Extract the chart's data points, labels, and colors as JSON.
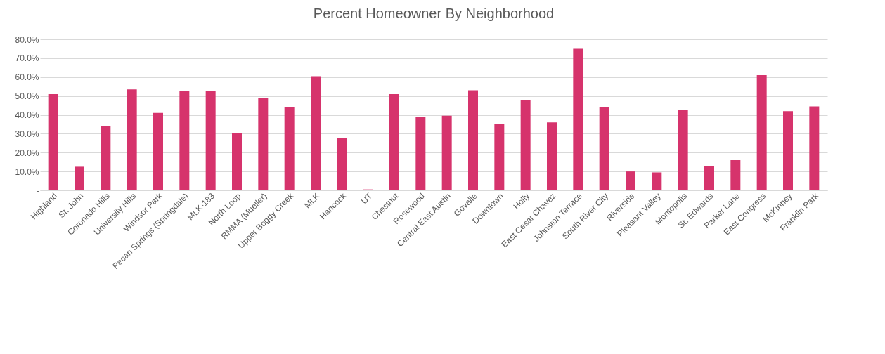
{
  "chart_data": {
    "type": "bar",
    "title": "Percent Homeowner By Neighborhood",
    "categories": [
      "Highland",
      "St. John",
      "Coronado Hills",
      "University Hills",
      "Windsor Park",
      "Pecan Springs (Springdale)",
      "MLK-183",
      "North Loop",
      "RMMA (Mueller)",
      "Upper Boggy Creek",
      "MLK",
      "Hancock",
      "UT",
      "Chestnut",
      "Rosewood",
      "Central East Austin",
      "Govalle",
      "Downtown",
      "Holly",
      "East Cesar Chavez",
      "Johnston Terrace",
      "South River City",
      "Riverside",
      "Pleasant Valley",
      "Montopolis",
      "St. Edwards",
      "Parker Lane",
      "East Congress",
      "McKinney",
      "Franklin Park"
    ],
    "values": [
      51,
      12.5,
      34,
      53.5,
      41,
      52.5,
      52.5,
      30.5,
      49,
      44,
      60.5,
      27.5,
      0.5,
      51,
      39,
      39.5,
      53,
      35,
      48,
      36,
      75,
      44,
      10,
      9.5,
      42.5,
      13,
      16,
      61,
      42,
      44.5
    ],
    "color": "#d6336c",
    "ylim": [
      0,
      80
    ],
    "yticks": [
      {
        "value": 0,
        "label": "-"
      },
      {
        "value": 10,
        "label": "10.0%"
      },
      {
        "value": 20,
        "label": "20.0%"
      },
      {
        "value": 30,
        "label": "30.0%"
      },
      {
        "value": 40,
        "label": "40.0%"
      },
      {
        "value": 50,
        "label": "50.0%"
      },
      {
        "value": 60,
        "label": "60.0%"
      },
      {
        "value": 70,
        "label": "70.0%"
      },
      {
        "value": 80,
        "label": "80.0%"
      }
    ],
    "grid": "y"
  }
}
